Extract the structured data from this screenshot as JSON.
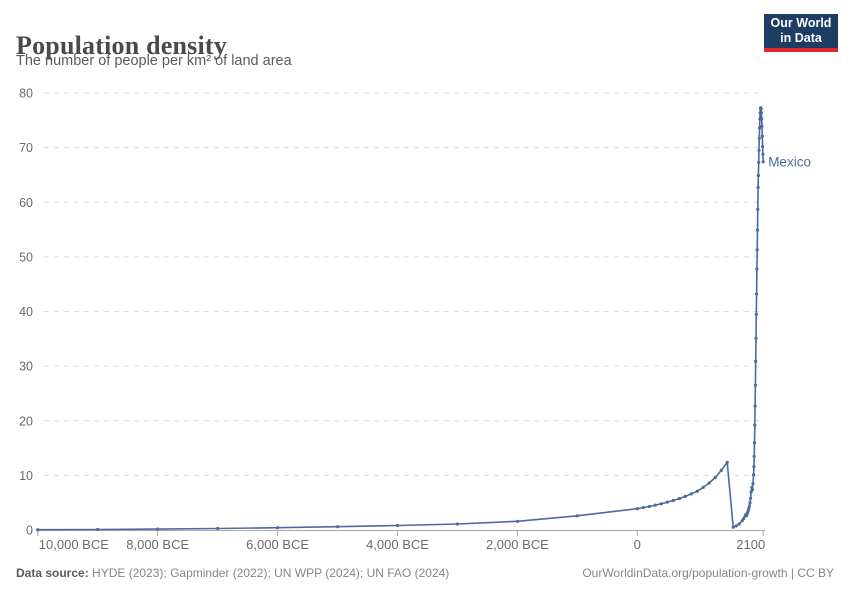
{
  "header": {
    "title": "Population density",
    "subtitle": "The number of people per km² of land area"
  },
  "logo": {
    "line1": "Our World",
    "line2": "in Data"
  },
  "footer": {
    "source_label": "Data source:",
    "source_text": " HYDE (2023); Gapminder (2022); UN WPP (2024); UN FAO (2024)",
    "link_text": "OurWorldinData.org/population-growth | CC BY"
  },
  "colors": {
    "series": "#4c6a9c",
    "logo_bg": "#1d3d63",
    "logo_accent": "#e0262b",
    "axis_text": "#6b6b6b",
    "grid_line": "#dcdcdc",
    "axis_line": "#a8a8a8"
  },
  "chart_data": {
    "type": "line",
    "title": "Population density",
    "subtitle": "The number of people per km² of land area",
    "xlabel": "",
    "ylabel": "people per km² of land area",
    "ylim": [
      0,
      80
    ],
    "yticks": [
      0,
      10,
      20,
      30,
      40,
      50,
      60,
      70,
      80
    ],
    "grid": "dashed horizontal gridlines",
    "legend": "end-of-line entity label",
    "xticks": [
      {
        "year": -10000,
        "label": "10,000 BCE"
      },
      {
        "year": -8000,
        "label": "8,000 BCE"
      },
      {
        "year": -6000,
        "label": "6,000 BCE"
      },
      {
        "year": -4000,
        "label": "4,000 BCE"
      },
      {
        "year": -2000,
        "label": "2,000 BCE"
      },
      {
        "year": 0,
        "label": "0"
      },
      {
        "year": 2100,
        "label": "2100"
      }
    ],
    "series": [
      {
        "name": "Mexico",
        "points": [
          [
            -10000,
            0.05
          ],
          [
            -9000,
            0.1
          ],
          [
            -8000,
            0.17
          ],
          [
            -7000,
            0.27
          ],
          [
            -6000,
            0.42
          ],
          [
            -5000,
            0.6
          ],
          [
            -4000,
            0.83
          ],
          [
            -3000,
            1.1
          ],
          [
            -2000,
            1.6
          ],
          [
            -1000,
            2.6
          ],
          [
            0,
            3.9
          ],
          [
            100,
            4.1
          ],
          [
            200,
            4.3
          ],
          [
            300,
            4.55
          ],
          [
            400,
            4.8
          ],
          [
            500,
            5.1
          ],
          [
            600,
            5.4
          ],
          [
            700,
            5.75
          ],
          [
            800,
            6.15
          ],
          [
            900,
            6.6
          ],
          [
            1000,
            7.1
          ],
          [
            1100,
            7.8
          ],
          [
            1200,
            8.6
          ],
          [
            1300,
            9.6
          ],
          [
            1400,
            10.9
          ],
          [
            1500,
            12.4
          ],
          [
            1600,
            0.5
          ],
          [
            1650,
            0.75
          ],
          [
            1700,
            1.1
          ],
          [
            1750,
            1.7
          ],
          [
            1775,
            2.1
          ],
          [
            1800,
            2.6
          ],
          [
            1810,
            2.8
          ],
          [
            1820,
            2.6
          ],
          [
            1830,
            2.9
          ],
          [
            1840,
            3.2
          ],
          [
            1850,
            3.5
          ],
          [
            1860,
            3.9
          ],
          [
            1870,
            4.4
          ],
          [
            1880,
            5.0
          ],
          [
            1890,
            5.8
          ],
          [
            1900,
            7.0
          ],
          [
            1910,
            7.8
          ],
          [
            1920,
            7.4
          ],
          [
            1930,
            8.5
          ],
          [
            1940,
            10.1
          ],
          [
            1945,
            11.6
          ],
          [
            1950,
            13.5
          ],
          [
            1955,
            16.0
          ],
          [
            1960,
            19.2
          ],
          [
            1965,
            22.7
          ],
          [
            1970,
            26.5
          ],
          [
            1975,
            30.9
          ],
          [
            1980,
            35.1
          ],
          [
            1985,
            39.5
          ],
          [
            1990,
            43.2
          ],
          [
            1995,
            47.8
          ],
          [
            2000,
            51.3
          ],
          [
            2005,
            54.9
          ],
          [
            2010,
            58.7
          ],
          [
            2015,
            62.7
          ],
          [
            2020,
            64.9
          ],
          [
            2025,
            67.3
          ],
          [
            2030,
            69.5
          ],
          [
            2035,
            71.7
          ],
          [
            2040,
            73.6
          ],
          [
            2045,
            75.2
          ],
          [
            2050,
            76.4
          ],
          [
            2055,
            77.1
          ],
          [
            2060,
            77.3
          ],
          [
            2065,
            77.1
          ],
          [
            2070,
            76.4
          ],
          [
            2075,
            75.3
          ],
          [
            2080,
            73.9
          ],
          [
            2085,
            72.1
          ],
          [
            2090,
            70.2
          ],
          [
            2095,
            68.8
          ],
          [
            2100,
            67.4
          ]
        ]
      }
    ]
  }
}
